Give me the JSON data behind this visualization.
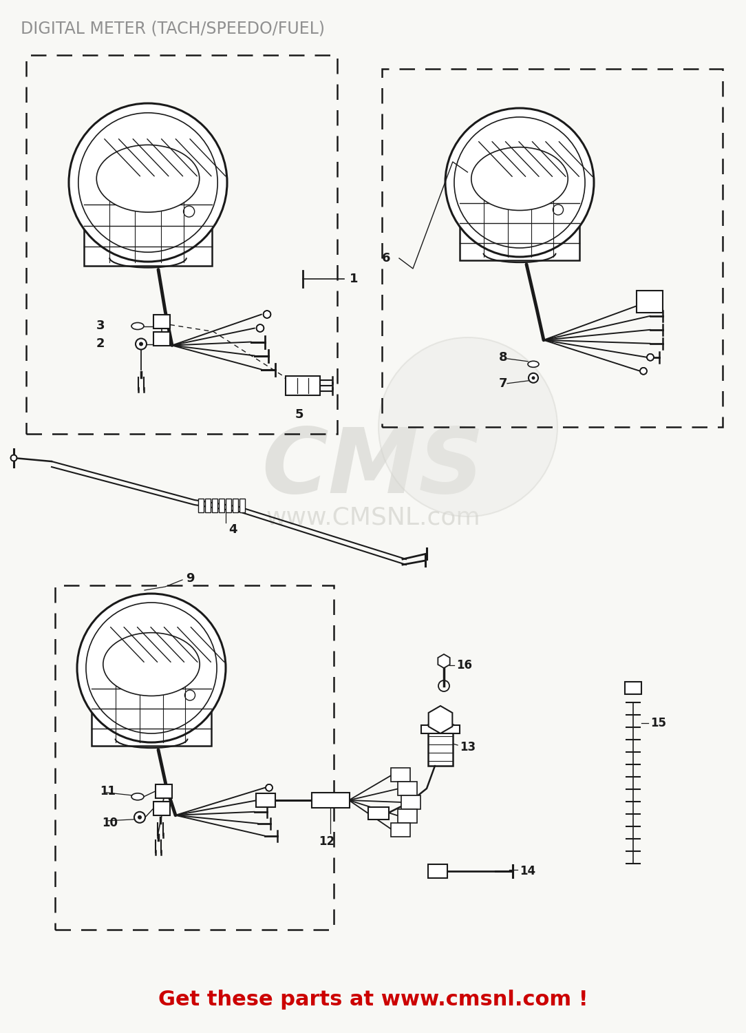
{
  "title": "DIGITAL METER (TACH/SPEEDO/FUEL)",
  "title_color": "#909090",
  "bg_color": "#f8f8f5",
  "line_color": "#1a1a1a",
  "red_text": "Get these parts at www.cmsnl.com !",
  "red_color": "#cc0000",
  "fig_width": 10.84,
  "fig_height": 15.0
}
